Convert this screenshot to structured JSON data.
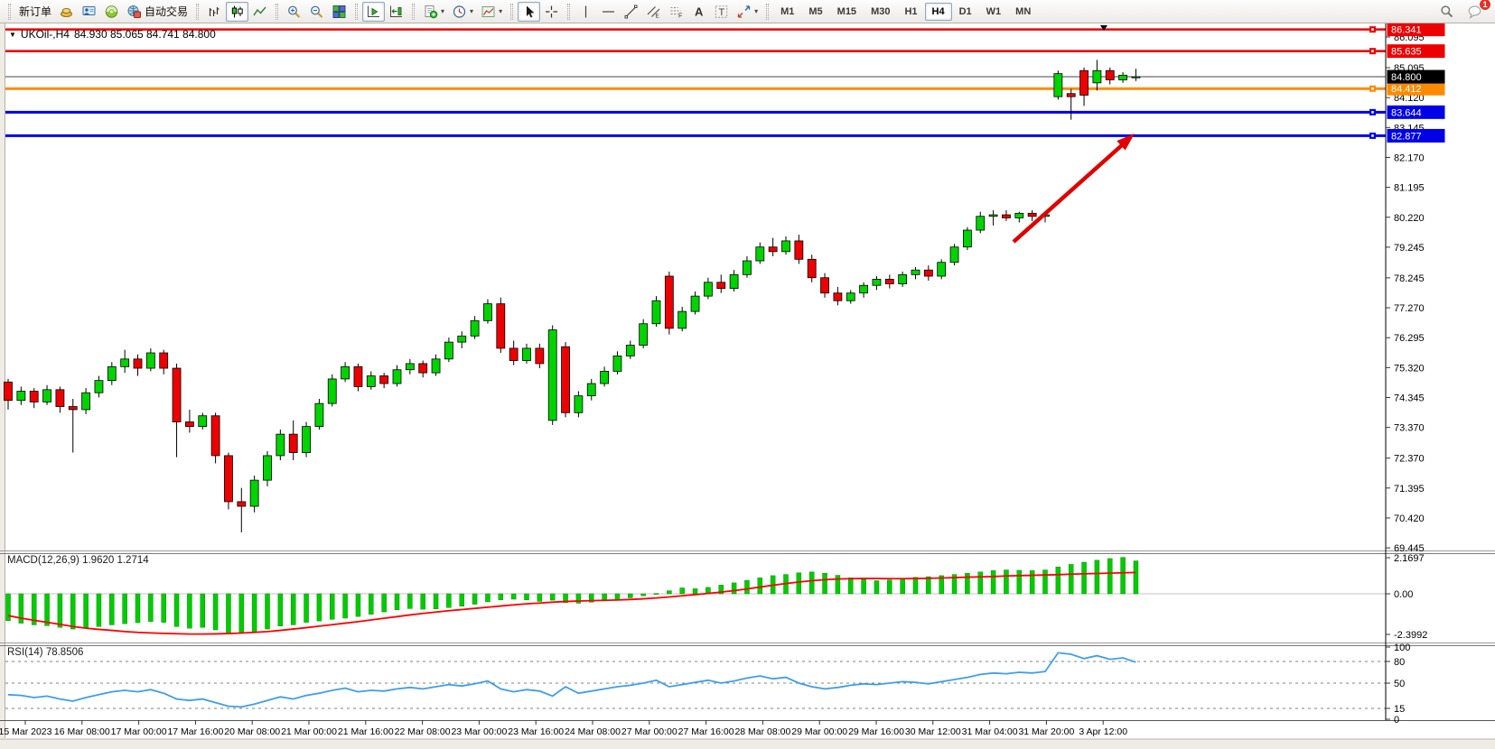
{
  "toolbar": {
    "groups": [
      [
        {
          "name": "new-order-button",
          "label": "新订单"
        },
        {
          "name": "market-watch-button",
          "icon": "gold-nugget"
        },
        {
          "name": "data-window-button",
          "icon": "data-window"
        },
        {
          "name": "navigator-button",
          "icon": "navigator"
        },
        {
          "name": "auto-trading-button",
          "label": "自动交易",
          "icon": "auto-trading"
        }
      ],
      [
        {
          "name": "bar-chart-button",
          "icon": "chart-bars"
        },
        {
          "name": "candlestick-chart-button",
          "icon": "chart-candles",
          "active": true
        },
        {
          "name": "line-chart-button",
          "icon": "chart-line"
        }
      ],
      [
        {
          "name": "zoom-in-button",
          "icon": "zoom-in"
        },
        {
          "name": "zoom-out-button",
          "icon": "zoom-out"
        },
        {
          "name": "tile-windows-button",
          "icon": "tile-windows"
        }
      ],
      [
        {
          "name": "auto-scroll-button",
          "icon": "auto-scroll",
          "active": true
        },
        {
          "name": "chart-shift-button",
          "icon": "chart-shift"
        }
      ],
      [
        {
          "name": "indicators-button",
          "icon": "indicators",
          "caret": true
        },
        {
          "name": "periods-button",
          "icon": "clock",
          "caret": true
        },
        {
          "name": "templates-button",
          "icon": "template",
          "caret": true
        }
      ],
      [
        {
          "name": "cursor-button",
          "icon": "cursor",
          "active": true
        },
        {
          "name": "crosshair-button",
          "icon": "crosshair"
        }
      ],
      [
        {
          "name": "vertical-line-button",
          "icon": "vline"
        },
        {
          "name": "horizontal-line-button",
          "icon": "hline"
        },
        {
          "name": "trendline-button",
          "icon": "tline"
        },
        {
          "name": "equidistant-channel-button",
          "icon": "channel"
        },
        {
          "name": "fibonacci-button",
          "icon": "fibo"
        },
        {
          "name": "text-button",
          "icon": "text-a"
        },
        {
          "name": "text-label-button",
          "icon": "text-t"
        },
        {
          "name": "arrows-button",
          "icon": "arrows",
          "caret": true
        }
      ]
    ],
    "timeframes": [
      "M1",
      "M5",
      "M15",
      "M30",
      "H1",
      "H4",
      "D1",
      "W1",
      "MN"
    ],
    "active_timeframe": "H4",
    "notification_badge": "1"
  },
  "chart": {
    "symbol_tf": "UKOil-,H4",
    "ohlc_text": "84.930 85.065 84.741 84.800"
  },
  "chart_data": {
    "type": "candlestick",
    "title": "UKOil-,H4",
    "open": "84.930",
    "high": "85.065",
    "low": "84.741",
    "close": "84.800",
    "y_ticks": [
      86.095,
      85.095,
      84.12,
      83.145,
      82.17,
      81.195,
      80.22,
      79.245,
      78.245,
      77.27,
      76.295,
      75.32,
      74.345,
      73.37,
      72.37,
      71.395,
      70.42,
      69.445
    ],
    "x_labels": [
      "15 Mar 2023",
      "16 Mar 08:00",
      "17 Mar 00:00",
      "17 Mar 16:00",
      "20 Mar 08:00",
      "21 Mar 00:00",
      "21 Mar 16:00",
      "22 Mar 08:00",
      "23 Mar 00:00",
      "23 Mar 16:00",
      "24 Mar 08:00",
      "27 Mar 00:00",
      "27 Mar 16:00",
      "28 Mar 08:00",
      "29 Mar 00:00",
      "29 Mar 16:00",
      "30 Mar 12:00",
      "31 Mar 04:00",
      "31 Mar 20:00",
      "3 Apr 12:00"
    ],
    "horizontal_lines": [
      {
        "price": 86.341,
        "color": "#EE0000",
        "width": 2.5
      },
      {
        "price": 85.635,
        "color": "#EE0000",
        "width": 2.5
      },
      {
        "price": 84.412,
        "color": "#FF8A00",
        "width": 3
      },
      {
        "price": 83.644,
        "color": "#0000E6",
        "width": 3
      },
      {
        "price": 82.877,
        "color": "#0000E6",
        "width": 3
      }
    ],
    "current_price": 84.8,
    "colors": {
      "up": "#00D400",
      "down": "#ED0000",
      "wick": "#000000",
      "macd_histogram": "#00CC00",
      "macd_signal": "#FF0000",
      "rsi_line": "#3E9EEB",
      "arrow": "#E00000"
    },
    "candles": [
      [
        74.85,
        74.95,
        73.95,
        74.25
      ],
      [
        74.25,
        74.7,
        74.1,
        74.55
      ],
      [
        74.55,
        74.65,
        74.0,
        74.2
      ],
      [
        74.2,
        74.75,
        74.1,
        74.6
      ],
      [
        74.6,
        74.7,
        73.85,
        74.05
      ],
      [
        74.05,
        74.3,
        72.55,
        73.95
      ],
      [
        73.95,
        74.65,
        73.8,
        74.5
      ],
      [
        74.5,
        75.05,
        74.35,
        74.9
      ],
      [
        74.9,
        75.5,
        74.75,
        75.35
      ],
      [
        75.35,
        75.9,
        75.15,
        75.6
      ],
      [
        75.6,
        75.75,
        75.05,
        75.3
      ],
      [
        75.3,
        75.95,
        75.2,
        75.8
      ],
      [
        75.8,
        75.9,
        75.1,
        75.3
      ],
      [
        75.3,
        75.45,
        72.4,
        73.55
      ],
      [
        73.55,
        73.95,
        73.2,
        73.4
      ],
      [
        73.4,
        73.85,
        73.3,
        73.75
      ],
      [
        73.75,
        73.85,
        72.2,
        72.45
      ],
      [
        72.45,
        72.55,
        70.7,
        70.95
      ],
      [
        70.95,
        71.4,
        69.95,
        70.8
      ],
      [
        70.8,
        71.8,
        70.6,
        71.65
      ],
      [
        71.65,
        72.6,
        71.45,
        72.45
      ],
      [
        72.45,
        73.3,
        72.3,
        73.15
      ],
      [
        73.15,
        73.6,
        72.3,
        72.55
      ],
      [
        72.55,
        73.55,
        72.4,
        73.4
      ],
      [
        73.4,
        74.3,
        73.3,
        74.15
      ],
      [
        74.15,
        75.1,
        74.05,
        74.95
      ],
      [
        74.95,
        75.5,
        74.85,
        75.35
      ],
      [
        75.35,
        75.45,
        74.55,
        74.7
      ],
      [
        74.7,
        75.2,
        74.6,
        75.05
      ],
      [
        75.05,
        75.15,
        74.65,
        74.8
      ],
      [
        74.8,
        75.4,
        74.7,
        75.25
      ],
      [
        75.25,
        75.6,
        75.1,
        75.45
      ],
      [
        75.45,
        75.55,
        75.0,
        75.15
      ],
      [
        75.15,
        75.75,
        75.05,
        75.6
      ],
      [
        75.6,
        76.3,
        75.5,
        76.15
      ],
      [
        76.15,
        76.5,
        75.95,
        76.35
      ],
      [
        76.35,
        77.0,
        76.25,
        76.85
      ],
      [
        76.85,
        77.55,
        76.75,
        77.4
      ],
      [
        77.4,
        77.6,
        75.8,
        75.95
      ],
      [
        75.95,
        76.2,
        75.4,
        75.55
      ],
      [
        75.55,
        76.1,
        75.45,
        75.95
      ],
      [
        75.95,
        76.1,
        75.3,
        75.45
      ],
      [
        73.6,
        76.7,
        73.45,
        76.55
      ],
      [
        76.0,
        76.15,
        73.7,
        73.85
      ],
      [
        73.85,
        74.55,
        73.7,
        74.4
      ],
      [
        74.4,
        74.95,
        74.25,
        74.8
      ],
      [
        74.8,
        75.35,
        74.7,
        75.2
      ],
      [
        75.2,
        75.85,
        75.1,
        75.7
      ],
      [
        75.7,
        76.2,
        75.6,
        76.05
      ],
      [
        76.05,
        76.9,
        75.95,
        76.75
      ],
      [
        76.75,
        77.65,
        76.65,
        77.5
      ],
      [
        78.3,
        78.45,
        76.4,
        76.6
      ],
      [
        76.6,
        77.3,
        76.5,
        77.15
      ],
      [
        77.15,
        77.8,
        77.05,
        77.65
      ],
      [
        77.65,
        78.25,
        77.55,
        78.1
      ],
      [
        78.1,
        78.35,
        77.75,
        77.9
      ],
      [
        77.9,
        78.5,
        77.8,
        78.35
      ],
      [
        78.35,
        78.95,
        78.25,
        78.8
      ],
      [
        78.8,
        79.4,
        78.7,
        79.25
      ],
      [
        79.25,
        79.55,
        78.95,
        79.1
      ],
      [
        79.1,
        79.6,
        79.0,
        79.45
      ],
      [
        79.45,
        79.65,
        78.7,
        78.85
      ],
      [
        78.85,
        79.0,
        78.1,
        78.25
      ],
      [
        78.25,
        78.4,
        77.6,
        77.75
      ],
      [
        77.75,
        77.95,
        77.35,
        77.5
      ],
      [
        77.5,
        77.85,
        77.4,
        77.75
      ],
      [
        77.75,
        78.1,
        77.6,
        78.0
      ],
      [
        78.0,
        78.3,
        77.85,
        78.2
      ],
      [
        78.2,
        78.35,
        77.9,
        78.05
      ],
      [
        78.05,
        78.45,
        77.95,
        78.35
      ],
      [
        78.35,
        78.6,
        78.2,
        78.5
      ],
      [
        78.5,
        78.65,
        78.15,
        78.3
      ],
      [
        78.3,
        78.85,
        78.2,
        78.75
      ],
      [
        78.75,
        79.35,
        78.65,
        79.25
      ],
      [
        79.25,
        79.9,
        79.15,
        79.8
      ],
      [
        79.8,
        80.4,
        79.7,
        80.25
      ],
      [
        80.25,
        80.45,
        79.95,
        80.3
      ],
      [
        80.3,
        80.45,
        80.1,
        80.2
      ],
      [
        80.2,
        80.4,
        80.05,
        80.35
      ],
      [
        80.35,
        80.45,
        80.1,
        80.25
      ],
      [
        80.25,
        80.4,
        80.05,
        80.3
      ],
      [
        84.15,
        85.0,
        84.05,
        84.9
      ],
      [
        84.25,
        84.4,
        83.4,
        84.15
      ],
      [
        85.0,
        85.1,
        83.85,
        84.2
      ],
      [
        84.6,
        85.35,
        84.35,
        85.0
      ],
      [
        85.0,
        85.1,
        84.55,
        84.7
      ],
      [
        84.7,
        84.95,
        84.6,
        84.85
      ],
      [
        84.78,
        85.06,
        84.66,
        84.8
      ]
    ],
    "macd": {
      "label_line": "MACD(12,26,9) 1.9620 1.2714",
      "name": "MACD",
      "params": "12,26,9",
      "macd_value": "1.9620",
      "signal_value": "1.2714",
      "axis_ticks": [
        "2.1697",
        "0.00",
        "-2.3992"
      ],
      "histogram": [
        -1.6,
        -1.75,
        -1.85,
        -1.9,
        -2.0,
        -2.1,
        -2.05,
        -1.95,
        -1.85,
        -1.78,
        -1.72,
        -1.65,
        -1.7,
        -1.95,
        -2.05,
        -2.0,
        -2.15,
        -2.3,
        -2.35,
        -2.28,
        -2.1,
        -1.92,
        -1.85,
        -1.7,
        -1.62,
        -1.52,
        -1.45,
        -1.35,
        -1.22,
        -1.08,
        -0.95,
        -0.88,
        -0.92,
        -0.9,
        -0.82,
        -0.74,
        -0.62,
        -0.48,
        -0.36,
        -0.32,
        -0.36,
        -0.45,
        -0.38,
        -0.52,
        -0.56,
        -0.5,
        -0.42,
        -0.34,
        -0.24,
        -0.12,
        0.02,
        0.18,
        0.35,
        0.3,
        0.38,
        0.52,
        0.65,
        0.8,
        0.95,
        1.08,
        1.15,
        1.25,
        1.3,
        1.22,
        1.1,
        0.95,
        0.85,
        0.78,
        0.82,
        0.9,
        0.98,
        1.02,
        1.08,
        1.15,
        1.22,
        1.3,
        1.38,
        1.42,
        1.4,
        1.38,
        1.42,
        1.6,
        1.75,
        1.88,
        2.0,
        2.1,
        2.17,
        1.96
      ],
      "signal": [
        -1.3,
        -1.45,
        -1.58,
        -1.7,
        -1.82,
        -1.95,
        -2.05,
        -2.12,
        -2.18,
        -2.25,
        -2.3,
        -2.33,
        -2.36,
        -2.38,
        -2.4,
        -2.4,
        -2.39,
        -2.37,
        -2.34,
        -2.3,
        -2.25,
        -2.18,
        -2.1,
        -2.02,
        -1.93,
        -1.84,
        -1.75,
        -1.66,
        -1.56,
        -1.46,
        -1.36,
        -1.26,
        -1.17,
        -1.09,
        -1.01,
        -0.94,
        -0.87,
        -0.8,
        -0.73,
        -0.66,
        -0.6,
        -0.55,
        -0.5,
        -0.46,
        -0.43,
        -0.41,
        -0.39,
        -0.37,
        -0.34,
        -0.3,
        -0.25,
        -0.19,
        -0.12,
        -0.05,
        0.02,
        0.1,
        0.19,
        0.29,
        0.4,
        0.51,
        0.61,
        0.7,
        0.78,
        0.84,
        0.88,
        0.9,
        0.91,
        0.91,
        0.9,
        0.9,
        0.91,
        0.92,
        0.94,
        0.96,
        0.99,
        1.01,
        1.03,
        1.06,
        1.08,
        1.1,
        1.12,
        1.14,
        1.17,
        1.19,
        1.21,
        1.23,
        1.25,
        1.27
      ]
    },
    "rsi": {
      "label_line": "RSI(14) 78.8506",
      "name": "RSI",
      "period": "14",
      "value": "78.8506",
      "levels": [
        "100",
        "80",
        "50",
        "15",
        "0"
      ],
      "dashed_levels": [
        80,
        50,
        15
      ],
      "line": [
        34,
        33,
        30,
        32,
        28,
        25,
        30,
        34,
        38,
        40,
        38,
        41,
        36,
        28,
        26,
        28,
        23,
        18,
        17,
        21,
        26,
        31,
        28,
        33,
        36,
        40,
        43,
        38,
        40,
        39,
        42,
        44,
        42,
        45,
        48,
        46,
        49,
        53,
        42,
        38,
        41,
        39,
        32,
        45,
        36,
        39,
        42,
        45,
        47,
        50,
        54,
        45,
        48,
        51,
        54,
        50,
        53,
        57,
        60,
        56,
        58,
        50,
        45,
        42,
        44,
        47,
        49,
        48,
        50,
        52,
        51,
        49,
        52,
        55,
        58,
        62,
        64,
        63,
        65,
        64,
        66,
        92,
        90,
        84,
        88,
        83,
        85,
        79
      ]
    },
    "annotation": {
      "type": "arrow",
      "color": "#E00000",
      "from": [
        1122,
        242
      ],
      "to": [
        1256,
        122
      ]
    },
    "top_marker_x": 1222,
    "layout": {
      "legend": false,
      "grid": false
    }
  }
}
